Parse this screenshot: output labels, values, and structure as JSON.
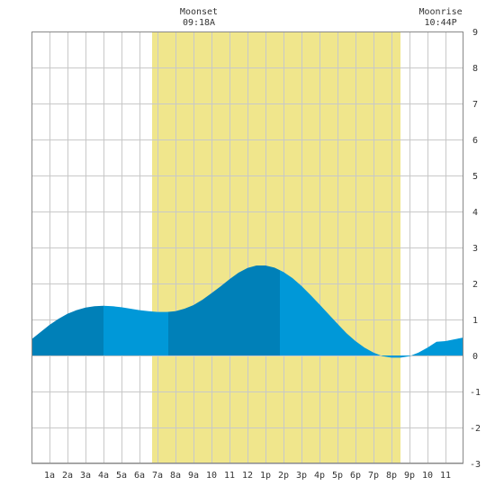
{
  "chart_data": {
    "type": "area",
    "title": "",
    "xlabel": "",
    "ylabel": "",
    "xlim": [
      0,
      24
    ],
    "ylim": [
      -3,
      9
    ],
    "grid": true,
    "x_ticks": [
      1,
      2,
      3,
      4,
      5,
      6,
      7,
      8,
      9,
      10,
      11,
      12,
      13,
      14,
      15,
      16,
      17,
      18,
      19,
      20,
      21,
      22,
      23
    ],
    "x_tick_labels": [
      "1a",
      "2a",
      "3a",
      "4a",
      "5a",
      "6a",
      "7a",
      "8a",
      "9a",
      "10",
      "11",
      "12",
      "1p",
      "2p",
      "3p",
      "4p",
      "5p",
      "6p",
      "7p",
      "8p",
      "9p",
      "10",
      "11"
    ],
    "y_ticks": [
      -3,
      -2,
      -1,
      0,
      1,
      2,
      3,
      4,
      5,
      6,
      7,
      8,
      9
    ],
    "y_tick_labels": [
      "-3",
      "-2",
      "-1",
      "0",
      "1",
      "2",
      "3",
      "4",
      "5",
      "6",
      "7",
      "8",
      "9"
    ],
    "daylight": {
      "start": 6.7,
      "end": 20.5,
      "color": "#f0e68c"
    },
    "band_boundaries": [
      4.0,
      7.6,
      13.8
    ],
    "band_colors": [
      "#0080b8",
      "#0098d8"
    ],
    "tide": {
      "x": [
        0,
        0.5,
        1,
        1.5,
        2,
        2.5,
        3,
        3.5,
        4,
        4.5,
        5,
        5.5,
        6,
        6.5,
        7,
        7.5,
        8,
        8.5,
        9,
        9.5,
        10,
        10.5,
        11,
        11.5,
        12,
        12.5,
        13,
        13.5,
        14,
        14.5,
        15,
        15.5,
        16,
        16.5,
        17,
        17.5,
        18,
        18.5,
        19,
        19.5,
        20,
        20.5,
        21,
        21.5,
        22,
        22.5,
        23,
        23.5,
        24
      ],
      "y": [
        0.45,
        0.65,
        0.85,
        1.02,
        1.16,
        1.26,
        1.33,
        1.37,
        1.38,
        1.37,
        1.34,
        1.3,
        1.26,
        1.23,
        1.21,
        1.21,
        1.23,
        1.3,
        1.4,
        1.55,
        1.73,
        1.92,
        2.12,
        2.3,
        2.43,
        2.5,
        2.5,
        2.44,
        2.32,
        2.15,
        1.93,
        1.68,
        1.42,
        1.15,
        0.88,
        0.62,
        0.4,
        0.22,
        0.08,
        -0.02,
        -0.06,
        -0.06,
        -0.02,
        0.08,
        0.22,
        0.38,
        0.4,
        0.45,
        0.5
      ]
    },
    "annotations": [
      {
        "label": "Moonset",
        "time": "09:18A",
        "x": 9.3
      },
      {
        "label": "Moonrise",
        "time": "10:44P",
        "x": 22.73
      }
    ]
  }
}
